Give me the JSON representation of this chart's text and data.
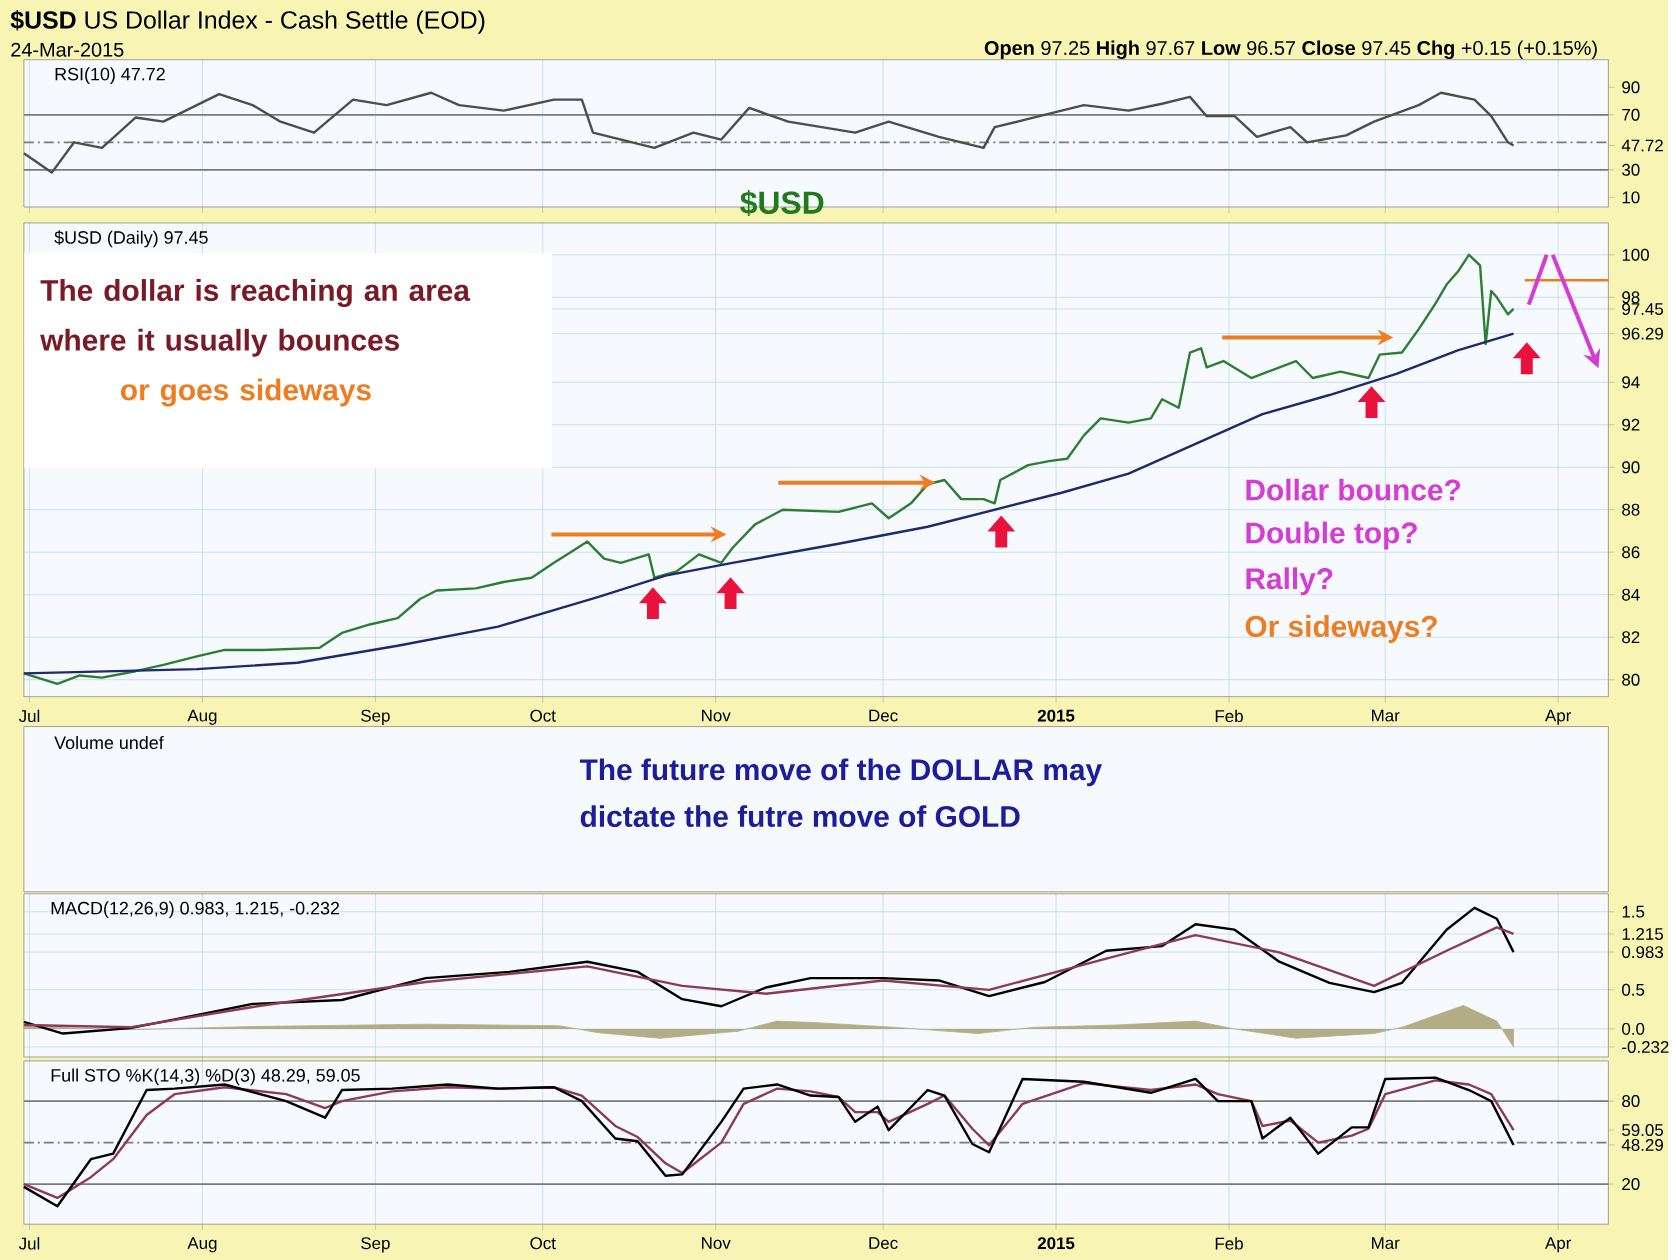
{
  "chart_data": [
    {
      "type": "line",
      "title": "**$USD** US Dollar Index - Cash Settle (EOD)",
      "subtitle": "24-Mar-2015",
      "annotations": [
        "**Open** 97.25 **High** 97.67 **Low** 96.57 **Close** 97.45 **Chg** +0.15 (+0.15%)",
        "RSI(10) 47.72",
        "$USD"
      ],
      "series": [
        {
          "color": "#4d4d4d",
          "x": [
            "2014-06-30",
            "2014-07-05",
            "2014-07-09",
            "2014-07-14",
            "2014-07-20",
            "2014-07-25",
            "2014-08-04",
            "2014-08-10",
            "2014-08-15",
            "2014-08-21",
            "2014-08-28",
            "2014-09-03",
            "2014-09-11",
            "2014-09-16",
            "2014-09-24",
            "2014-10-03",
            "2014-10-08",
            "2014-10-10",
            "2014-10-21",
            "2014-10-28",
            "2014-11-02",
            "2014-11-07",
            "2014-11-14",
            "2014-11-26",
            "2014-12-02",
            "2014-12-11",
            "2014-12-19",
            "2014-12-21",
            "2014-12-29",
            "2015-01-06",
            "2015-01-14",
            "2015-01-20",
            "2015-01-25",
            "2015-01-28",
            "2015-02-02",
            "2015-02-06",
            "2015-02-12",
            "2015-02-15",
            "2015-02-22",
            "2015-02-27",
            "2015-03-07",
            "2015-03-11",
            "2015-03-17",
            "2015-03-20",
            "2015-03-23",
            "2015-03-24"
          ],
          "values": [
            42,
            28,
            50,
            46,
            68,
            65,
            85,
            77,
            65,
            57,
            81,
            77,
            86,
            77,
            73,
            81,
            81,
            57,
            46,
            57,
            52,
            75,
            65,
            57,
            65,
            54,
            46,
            61,
            69,
            77,
            73,
            78,
            83,
            69,
            69,
            54,
            61,
            50,
            55,
            65,
            77,
            86,
            81,
            69,
            50,
            47.72
          ]
        }
      ],
      "xlim": [
        "2014-06-30",
        "2015-04-10"
      ],
      "xticks": [
        {
          "value": "2014-07-01",
          "label": null
        },
        {
          "value": "2014-08-01",
          "label": null
        },
        {
          "value": "2014-09-01",
          "label": null
        },
        {
          "value": "2014-10-01",
          "label": null
        },
        {
          "value": "2014-11-01",
          "label": null
        },
        {
          "value": "2014-12-01",
          "label": null
        },
        {
          "value": "2015-01-01",
          "label": null
        },
        {
          "value": "2015-02-01",
          "label": null
        },
        {
          "value": "2015-03-01",
          "label": null
        },
        {
          "value": "2015-04-01",
          "label": null
        }
      ],
      "ylim": [
        3,
        110
      ],
      "yticks": [
        90,
        70,
        47.72,
        30,
        10
      ],
      "tick_labels": "y",
      "grid": "x",
      "ref_lines": [
        {
          "axis": "y",
          "value": 70,
          "color": "#7a7a7a"
        },
        {
          "axis": "y",
          "value": 30,
          "color": "#7a7a7a"
        },
        {
          "axis": "y",
          "value": 50,
          "color": "#7a7a7a",
          "line_style": "dashed"
        }
      ]
    },
    {
      "type": "line",
      "annotations": [
        "$USD (Daily) 97.45",
        "The dollar is reaching an area",
        "where it usually bounces",
        "or goes sideways",
        "Dollar bounce?",
        "Double top?",
        "Rally?",
        "Or sideways?"
      ],
      "series": [
        {
          "color": "#2e7d32",
          "x": [
            "2014-06-30",
            "2014-07-06",
            "2014-07-10",
            "2014-07-14",
            "2014-07-20",
            "2014-07-25",
            "2014-07-31",
            "2014-08-05",
            "2014-08-12",
            "2014-08-22",
            "2014-08-26",
            "2014-08-31",
            "2014-09-05",
            "2014-09-09",
            "2014-09-12",
            "2014-09-19",
            "2014-09-24",
            "2014-09-29",
            "2014-10-03",
            "2014-10-06",
            "2014-10-09",
            "2014-10-12",
            "2014-10-15",
            "2014-10-20",
            "2014-10-21",
            "2014-10-25",
            "2014-10-29",
            "2014-11-02",
            "2014-11-04",
            "2014-11-08",
            "2014-11-13",
            "2014-11-23",
            "2014-11-29",
            "2014-12-02",
            "2014-12-06",
            "2014-12-09",
            "2014-12-12",
            "2014-12-15",
            "2014-12-19",
            "2014-12-21",
            "2014-12-22",
            "2014-12-27",
            "2014-12-31",
            "2015-01-03",
            "2015-01-06",
            "2015-01-09",
            "2015-01-14",
            "2015-01-18",
            "2015-01-20",
            "2015-01-23",
            "2015-01-25",
            "2015-01-27",
            "2015-01-28",
            "2015-01-31",
            "2015-02-05",
            "2015-02-08",
            "2015-02-13",
            "2015-02-16",
            "2015-02-21",
            "2015-02-26",
            "2015-02-28",
            "2015-03-04",
            "2015-03-07",
            "2015-03-10",
            "2015-03-12",
            "2015-03-14",
            "2015-03-16",
            "2015-03-18",
            "2015-03-19",
            "2015-03-20",
            "2015-03-21",
            "2015-03-23",
            "2015-03-24"
          ],
          "values": [
            80.3,
            79.8,
            80.2,
            80.1,
            80.4,
            80.7,
            81.1,
            81.4,
            81.4,
            81.5,
            82.2,
            82.6,
            82.9,
            83.8,
            84.2,
            84.3,
            84.6,
            84.8,
            85.5,
            86.0,
            86.5,
            85.7,
            85.5,
            85.9,
            84.8,
            85.1,
            85.9,
            85.5,
            86.2,
            87.3,
            88.0,
            87.9,
            88.3,
            87.6,
            88.3,
            89.2,
            89.4,
            88.5,
            88.5,
            88.3,
            89.4,
            90.1,
            90.3,
            90.4,
            91.5,
            92.3,
            92.1,
            92.3,
            93.2,
            92.8,
            95.4,
            95.6,
            94.7,
            95.0,
            94.2,
            94.5,
            95.0,
            94.2,
            94.5,
            94.2,
            95.3,
            95.4,
            96.5,
            97.7,
            98.6,
            99.2,
            100.0,
            99.5,
            95.8,
            98.3,
            98.0,
            97.2,
            97.45
          ]
        },
        {
          "color": "#ee7d22",
          "x": [
            "2015-03-26",
            "2015-04-10"
          ],
          "values": [
            98.8,
            98.8
          ]
        },
        {
          "color": "#1f2a6b",
          "x": [
            "2014-06-30",
            "2014-07-31",
            "2014-08-18",
            "2014-09-05",
            "2014-09-23",
            "2014-10-11",
            "2014-10-23",
            "2014-11-04",
            "2014-11-23",
            "2014-12-09",
            "2014-12-21",
            "2015-01-02",
            "2015-01-14",
            "2015-01-26",
            "2015-02-07",
            "2015-02-19",
            "2015-03-03",
            "2015-03-14",
            "2015-03-24"
          ],
          "values": [
            80.3,
            80.5,
            80.8,
            81.6,
            82.5,
            83.9,
            84.9,
            85.5,
            86.4,
            87.2,
            88.0,
            88.8,
            89.7,
            91.1,
            92.5,
            93.4,
            94.4,
            95.5,
            96.29
          ]
        }
      ],
      "xlim": [
        "2014-06-30",
        "2015-04-10"
      ],
      "xticks": [
        {
          "value": "2014-07-01",
          "label": "Jul"
        },
        {
          "value": "2014-08-01",
          "label": "Aug"
        },
        {
          "value": "2014-09-01",
          "label": "Sep"
        },
        {
          "value": "2014-10-01",
          "label": "Oct"
        },
        {
          "value": "2014-11-01",
          "label": "Nov"
        },
        {
          "value": "2014-12-01",
          "label": "Dec"
        },
        {
          "value": "2015-01-01",
          "label": "**2015**"
        },
        {
          "value": "2015-02-01",
          "label": "Feb"
        },
        {
          "value": "2015-03-01",
          "label": "Mar"
        },
        {
          "value": "2015-04-01",
          "label": "Apr"
        }
      ],
      "ylim": [
        79.2,
        101.5
      ],
      "yticks": [
        80,
        82,
        84,
        86,
        88,
        90,
        92,
        94,
        96.29,
        97.45,
        98,
        100
      ],
      "grid": true
    },
    {
      "type": "other",
      "title": "Volume undef",
      "annotations": [
        "The future move of the DOLLAR may",
        "dictate the futre move of GOLD"
      ]
    },
    {
      "type": "line",
      "annotations": [
        "MACD(12,26,9) 0.983, 1.215, -0.232"
      ],
      "series": [
        {
          "type": "area",
          "color": "#b3ad86",
          "x": [
            "2014-06-30",
            "2014-07-19",
            "2014-08-10",
            "2014-09-10",
            "2014-10-04",
            "2014-10-11",
            "2014-10-22",
            "2014-11-05",
            "2014-11-12",
            "2014-11-19",
            "2014-12-03",
            "2014-12-18",
            "2014-12-28",
            "2015-01-12",
            "2015-01-26",
            "2015-02-02",
            "2015-02-13",
            "2015-02-27",
            "2015-03-04",
            "2015-03-15",
            "2015-03-21",
            "2015-03-24"
          ],
          "values": [
            0.03,
            -0.01,
            0.03,
            0.06,
            0.04,
            -0.05,
            -0.12,
            -0.03,
            0.1,
            0.08,
            0.02,
            -0.06,
            0.02,
            0.05,
            0.1,
            0.0,
            -0.12,
            -0.06,
            0.02,
            0.3,
            0.1,
            -0.232
          ]
        },
        {
          "color": "#000000",
          "x": [
            "2014-06-30",
            "2014-07-07",
            "2014-07-19",
            "2014-08-01",
            "2014-08-10",
            "2014-08-26",
            "2014-09-10",
            "2014-09-25",
            "2014-10-09",
            "2014-10-18",
            "2014-10-26",
            "2014-11-02",
            "2014-11-10",
            "2014-11-18",
            "2014-12-01",
            "2014-12-11",
            "2014-12-20",
            "2014-12-30",
            "2015-01-10",
            "2015-01-20",
            "2015-01-26",
            "2015-02-02",
            "2015-02-10",
            "2015-02-19",
            "2015-02-27",
            "2015-03-04",
            "2015-03-12",
            "2015-03-17",
            "2015-03-21",
            "2015-03-24"
          ],
          "values": [
            0.09,
            -0.06,
            0.01,
            0.19,
            0.32,
            0.37,
            0.65,
            0.73,
            0.86,
            0.73,
            0.38,
            0.29,
            0.53,
            0.65,
            0.65,
            0.62,
            0.42,
            0.6,
            1.0,
            1.06,
            1.34,
            1.27,
            0.86,
            0.59,
            0.47,
            0.59,
            1.27,
            1.55,
            1.41,
            0.983
          ]
        },
        {
          "color": "#8c3a55",
          "x": [
            "2014-06-30",
            "2014-07-19",
            "2014-08-10",
            "2014-09-10",
            "2014-10-09",
            "2014-10-26",
            "2014-11-10",
            "2014-12-01",
            "2014-12-20",
            "2015-01-10",
            "2015-01-26",
            "2015-02-10",
            "2015-02-27",
            "2015-03-12",
            "2015-03-21",
            "2015-03-24"
          ],
          "values": [
            0.05,
            0.02,
            0.28,
            0.6,
            0.8,
            0.55,
            0.45,
            0.62,
            0.5,
            0.9,
            1.2,
            0.98,
            0.55,
            1.0,
            1.3,
            1.215
          ]
        }
      ],
      "xlim": [
        "2014-06-30",
        "2015-04-10"
      ],
      "xticks": [
        {
          "value": "2014-07-01",
          "label": null
        },
        {
          "value": "2014-08-01",
          "label": null
        },
        {
          "value": "2014-09-01",
          "label": null
        },
        {
          "value": "2014-10-01",
          "label": null
        },
        {
          "value": "2014-11-01",
          "label": null
        },
        {
          "value": "2014-12-01",
          "label": null
        },
        {
          "value": "2015-01-01",
          "label": null
        },
        {
          "value": "2015-02-01",
          "label": null
        },
        {
          "value": "2015-03-01",
          "label": null
        },
        {
          "value": "2015-04-01",
          "label": null
        }
      ],
      "ylim": [
        -0.36,
        1.73
      ],
      "yticks": [
        1.5,
        1.215,
        0.983,
        0.5,
        {
          "value": 0,
          "label": "0.0"
        },
        -0.232
      ],
      "tick_labels": "y",
      "grid": true
    },
    {
      "type": "line",
      "annotations": [
        "Full STO %K(14,3) %D(3) 48.29, 59.05"
      ],
      "series": [
        {
          "color": "#8c3a55",
          "x": [
            "2014-06-30",
            "2014-07-06",
            "2014-07-12",
            "2014-07-16",
            "2014-07-22",
            "2014-07-27",
            "2014-08-05",
            "2014-08-16",
            "2014-08-23",
            "2014-08-26",
            "2014-09-04",
            "2014-09-14",
            "2014-09-23",
            "2014-10-03",
            "2014-10-08",
            "2014-10-14",
            "2014-10-18",
            "2014-10-23",
            "2014-10-26",
            "2014-11-02",
            "2014-11-06",
            "2014-11-12",
            "2014-11-18",
            "2014-11-23",
            "2014-11-26",
            "2014-11-30",
            "2014-12-02",
            "2014-12-09",
            "2014-12-12",
            "2014-12-17",
            "2014-12-20",
            "2014-12-26",
            "2015-01-06",
            "2015-01-18",
            "2015-01-26",
            "2015-01-30",
            "2015-02-05",
            "2015-02-07",
            "2015-02-12",
            "2015-02-17",
            "2015-02-23",
            "2015-02-26",
            "2015-03-01",
            "2015-03-10",
            "2015-03-16",
            "2015-03-20",
            "2015-03-24"
          ],
          "values": [
            20,
            10,
            25,
            38,
            70,
            85,
            90,
            85,
            75,
            80,
            87,
            90,
            89,
            90,
            84,
            62,
            54,
            35,
            28,
            50,
            78,
            89,
            87,
            83,
            72,
            72,
            65,
            78,
            84,
            60,
            48,
            78,
            93,
            88,
            92,
            85,
            80,
            62,
            66,
            50,
            55,
            60,
            85,
            95,
            92,
            85,
            59.05
          ]
        },
        {
          "color": "#000000",
          "x": [
            "2014-06-30",
            "2014-07-06",
            "2014-07-12",
            "2014-07-16",
            "2014-07-22",
            "2014-07-27",
            "2014-08-05",
            "2014-08-16",
            "2014-08-23",
            "2014-08-26",
            "2014-09-04",
            "2014-09-14",
            "2014-09-23",
            "2014-10-03",
            "2014-10-08",
            "2014-10-14",
            "2014-10-18",
            "2014-10-23",
            "2014-10-26",
            "2014-11-02",
            "2014-11-06",
            "2014-11-12",
            "2014-11-18",
            "2014-11-23",
            "2014-11-26",
            "2014-11-30",
            "2014-12-02",
            "2014-12-09",
            "2014-12-12",
            "2014-12-17",
            "2014-12-20",
            "2014-12-26",
            "2015-01-06",
            "2015-01-18",
            "2015-01-26",
            "2015-01-30",
            "2015-02-05",
            "2015-02-07",
            "2015-02-12",
            "2015-02-17",
            "2015-02-23",
            "2015-02-26",
            "2015-03-01",
            "2015-03-10",
            "2015-03-16",
            "2015-03-20",
            "2015-03-24"
          ],
          "values": [
            18,
            4,
            38,
            42,
            88,
            89,
            92,
            80,
            68,
            88,
            89,
            92,
            89,
            90,
            80,
            53,
            51,
            26,
            27,
            65,
            89,
            92,
            84,
            83,
            65,
            76,
            59,
            88,
            84,
            49,
            43,
            96,
            94,
            86,
            96,
            80,
            80,
            53,
            68,
            42,
            61,
            61,
            96,
            97,
            88,
            80,
            48.29
          ]
        }
      ],
      "xlim": [
        "2014-06-30",
        "2015-04-10"
      ],
      "xticks": [
        {
          "value": "2014-07-01",
          "label": "Jul"
        },
        {
          "value": "2014-08-01",
          "label": "Aug"
        },
        {
          "value": "2014-09-01",
          "label": "Sep"
        },
        {
          "value": "2014-10-01",
          "label": "Oct"
        },
        {
          "value": "2014-11-01",
          "label": "Nov"
        },
        {
          "value": "2014-12-01",
          "label": "Dec"
        },
        {
          "value": "2015-01-01",
          "label": "**2015**"
        },
        {
          "value": "2015-02-01",
          "label": "Feb"
        },
        {
          "value": "2015-03-01",
          "label": "Mar"
        },
        {
          "value": "2015-04-01",
          "label": "Apr"
        }
      ],
      "ylim": [
        -9,
        109
      ],
      "yticks": [
        80,
        59.05,
        48.29,
        20
      ],
      "grid": "x",
      "ref_lines": [
        {
          "axis": "y",
          "value": 80,
          "color": "#7a7a7a"
        },
        {
          "axis": "y",
          "value": 20,
          "color": "#7a7a7a"
        },
        {
          "axis": "y",
          "value": 50,
          "color": "#7a7a7a",
          "line_style": "dashed"
        }
      ]
    }
  ]
}
